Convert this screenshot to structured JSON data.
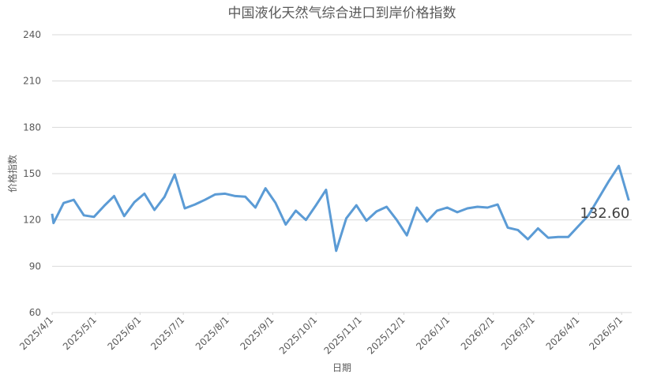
{
  "chart_data": {
    "type": "line",
    "title": "中国液化天然气综合进口到岸价格指数",
    "x_label": "日期",
    "y_label": "价格指数",
    "end_label": "132.60",
    "x": [
      "2025/4/1",
      "2025/4/2",
      "2025/4/9",
      "2025/4/16",
      "2025/4/23",
      "2025/4/30",
      "2025/5/7",
      "2025/5/14",
      "2025/5/21",
      "2025/5/28",
      "2025/6/4",
      "2025/6/11",
      "2025/6/18",
      "2025/6/25",
      "2025/7/2",
      "2025/7/9",
      "2025/7/16",
      "2025/7/23",
      "2025/7/30",
      "2025/8/6",
      "2025/8/13",
      "2025/8/20",
      "2025/8/27",
      "2025/9/3",
      "2025/9/10",
      "2025/9/17",
      "2025/9/24",
      "2025/10/1",
      "2025/10/8",
      "2025/10/15",
      "2025/10/22",
      "2025/10/29",
      "2025/11/5",
      "2025/11/12",
      "2025/11/19",
      "2025/11/26",
      "2025/12/3",
      "2025/12/10",
      "2025/12/17",
      "2025/12/24",
      "2025/12/31",
      "2026/1/7",
      "2026/1/14",
      "2026/1/21",
      "2026/1/28",
      "2026/2/4",
      "2026/2/11",
      "2026/2/18",
      "2026/2/25",
      "2026/3/4",
      "2026/3/11",
      "2026/3/18",
      "2026/3/25",
      "2026/4/1",
      "2026/4/8",
      "2026/4/15",
      "2026/4/22",
      "2026/4/29",
      "2026/5/6"
    ],
    "series": [
      {
        "name": "价格指数",
        "color": "#5b9bd5",
        "values": [
          124,
          118,
          131,
          133,
          123,
          122,
          129,
          135.5,
          122.5,
          131.5,
          137,
          126.5,
          135,
          149.5,
          127.5,
          130,
          133,
          136.5,
          137,
          135.5,
          135,
          128,
          140.5,
          131,
          117,
          126,
          120,
          129.5,
          139.5,
          100,
          121,
          129.5,
          119.5,
          125.5,
          128.5,
          120,
          110,
          128,
          119,
          126,
          128,
          125,
          127.5,
          128.5,
          128,
          130,
          115,
          113.5,
          107.5,
          114.5,
          108.5,
          109,
          109,
          116,
          123,
          134,
          145,
          155,
          132.6
        ]
      }
    ],
    "xlim": [
      "2025/4/1",
      "2026/5/8"
    ],
    "xticks": [
      "2025/4/1",
      "2025/5/1",
      "2025/6/1",
      "2025/7/1",
      "2025/8/1",
      "2025/9/1",
      "2025/10/1",
      "2025/11/1",
      "2025/12/1",
      "2026/1/1",
      "2026/2/1",
      "2026/3/1",
      "2026/4/1",
      "2026/5/1"
    ],
    "ylim": [
      60,
      240
    ],
    "yticks": [
      60,
      90,
      120,
      150,
      180,
      210,
      240
    ],
    "grid": true
  }
}
